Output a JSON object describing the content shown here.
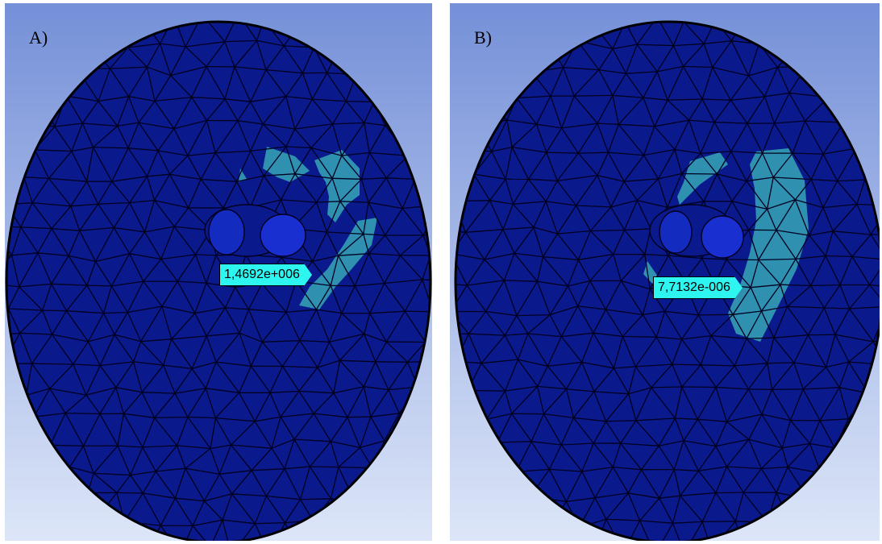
{
  "panels": [
    {
      "id": "a",
      "label": "A)",
      "probe_value": "1,4692e+006"
    },
    {
      "id": "b",
      "label": "B)",
      "probe_value": "7,7132e-006"
    }
  ],
  "colors": {
    "background_top": "#7590d8",
    "background_bottom": "#dde6f8",
    "disk": "#0a1a8c",
    "mesh_lines": "#000020",
    "highlight_region": "#2f90b0",
    "probe": "#2ff5f0"
  }
}
